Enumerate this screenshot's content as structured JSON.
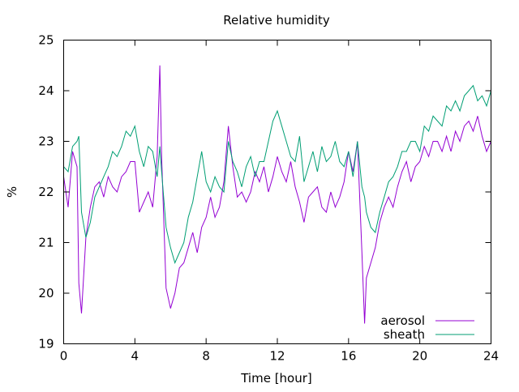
{
  "chart_data": {
    "type": "line",
    "title": "Relative humidity",
    "xlabel": "Time [hour]",
    "ylabel": "%",
    "xlim": [
      0,
      24
    ],
    "ylim": [
      19,
      25
    ],
    "xticks": [
      0,
      4,
      8,
      12,
      16,
      20,
      24
    ],
    "yticks": [
      19,
      20,
      21,
      22,
      23,
      24,
      25
    ],
    "grid": false,
    "legend_position": "bottom-right",
    "x": [
      0.0,
      0.25,
      0.5,
      0.75,
      0.85,
      1.0,
      1.25,
      1.5,
      1.75,
      2.0,
      2.25,
      2.5,
      2.75,
      3.0,
      3.25,
      3.5,
      3.75,
      4.0,
      4.25,
      4.5,
      4.75,
      5.0,
      5.25,
      5.4,
      5.5,
      5.75,
      6.0,
      6.25,
      6.5,
      6.75,
      7.0,
      7.25,
      7.5,
      7.75,
      8.0,
      8.25,
      8.5,
      8.75,
      9.0,
      9.25,
      9.5,
      9.75,
      10.0,
      10.25,
      10.5,
      10.75,
      11.0,
      11.25,
      11.5,
      11.75,
      12.0,
      12.25,
      12.5,
      12.75,
      13.0,
      13.25,
      13.5,
      13.75,
      14.0,
      14.25,
      14.5,
      14.75,
      15.0,
      15.25,
      15.5,
      15.75,
      16.0,
      16.25,
      16.5,
      16.75,
      16.9,
      17.0,
      17.25,
      17.5,
      17.75,
      18.0,
      18.25,
      18.5,
      18.75,
      19.0,
      19.25,
      19.5,
      19.75,
      20.0,
      20.25,
      20.5,
      20.75,
      21.0,
      21.25,
      21.5,
      21.75,
      22.0,
      22.25,
      22.5,
      22.75,
      23.0,
      23.25,
      23.5,
      23.75,
      24.0
    ],
    "series": [
      {
        "name": "aerosol",
        "color": "#9400d3",
        "values": [
          22.3,
          21.7,
          22.8,
          22.5,
          20.2,
          19.6,
          21.1,
          21.7,
          22.1,
          22.2,
          21.9,
          22.3,
          22.1,
          22.0,
          22.3,
          22.4,
          22.6,
          22.6,
          21.6,
          21.8,
          22.0,
          21.7,
          22.7,
          24.5,
          22.7,
          20.1,
          19.7,
          20.0,
          20.5,
          20.6,
          20.9,
          21.2,
          20.8,
          21.3,
          21.5,
          21.9,
          21.5,
          21.7,
          22.2,
          23.3,
          22.5,
          21.9,
          22.0,
          21.8,
          22.0,
          22.4,
          22.2,
          22.5,
          22.0,
          22.3,
          22.7,
          22.4,
          22.2,
          22.6,
          22.1,
          21.8,
          21.4,
          21.9,
          22.0,
          22.1,
          21.7,
          21.6,
          22.0,
          21.7,
          21.9,
          22.2,
          22.8,
          22.4,
          23.0,
          20.8,
          19.4,
          20.3,
          20.6,
          20.9,
          21.4,
          21.7,
          21.9,
          21.7,
          22.1,
          22.4,
          22.6,
          22.2,
          22.5,
          22.6,
          22.9,
          22.7,
          23.0,
          23.0,
          22.8,
          23.1,
          22.8,
          23.2,
          23.0,
          23.3,
          23.4,
          23.2,
          23.5,
          23.1,
          22.8,
          23.0
        ]
      },
      {
        "name": "sheath",
        "color": "#009e73",
        "values": [
          22.5,
          22.4,
          22.9,
          23.0,
          23.1,
          21.6,
          21.1,
          21.4,
          21.9,
          22.1,
          22.3,
          22.5,
          22.8,
          22.7,
          22.9,
          23.2,
          23.1,
          23.3,
          22.8,
          22.5,
          22.9,
          22.8,
          22.3,
          22.9,
          22.4,
          21.3,
          20.9,
          20.6,
          20.8,
          21.0,
          21.5,
          21.8,
          22.3,
          22.8,
          22.2,
          22.0,
          22.3,
          22.1,
          22.0,
          23.0,
          22.6,
          22.4,
          22.1,
          22.5,
          22.7,
          22.3,
          22.6,
          22.6,
          23.0,
          23.4,
          23.6,
          23.3,
          23.0,
          22.7,
          22.6,
          23.1,
          22.2,
          22.5,
          22.8,
          22.4,
          22.9,
          22.6,
          22.7,
          23.0,
          22.6,
          22.5,
          22.8,
          22.3,
          23.0,
          22.1,
          21.9,
          21.6,
          21.3,
          21.2,
          21.6,
          21.9,
          22.2,
          22.3,
          22.5,
          22.8,
          22.8,
          23.0,
          23.0,
          22.8,
          23.3,
          23.2,
          23.5,
          23.4,
          23.3,
          23.7,
          23.6,
          23.8,
          23.6,
          23.9,
          24.0,
          24.1,
          23.8,
          23.9,
          23.7,
          24.0
        ]
      }
    ]
  }
}
